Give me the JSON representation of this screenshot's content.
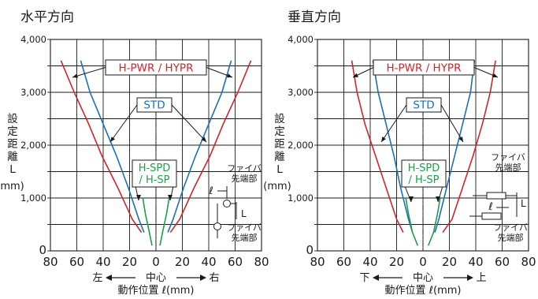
{
  "chart_data": [
    {
      "type": "line",
      "title": "水平方向",
      "ylabel_chars": [
        "設",
        "定",
        "距",
        "離",
        "L"
      ],
      "ylabel_unit": "(mm)",
      "xlabel": "動作位置 ℓ(mm)",
      "direction": {
        "left": "左",
        "center": "中心",
        "right": "右"
      },
      "x_ticks": [
        "80",
        "60",
        "40",
        "20",
        "0",
        "20",
        "40",
        "60",
        "80"
      ],
      "y_ticks": [
        "0",
        "1,000",
        "2,000",
        "3,000",
        "4,000"
      ],
      "xlim": [
        -80,
        80
      ],
      "ylim": [
        0,
        4000
      ],
      "series": [
        {
          "name": "H-PWR / HYPR",
          "color": "#d2232a",
          "label_key": "pwr",
          "left": [
            [
              -72,
              3600
            ],
            [
              -62,
              3000
            ],
            [
              -51,
              2400
            ],
            [
              -41,
              1800
            ],
            [
              -29,
              1200
            ],
            [
              -18,
              600
            ],
            [
              -11,
              350
            ]
          ],
          "right": [
            [
              72,
              3600
            ],
            [
              62,
              3000
            ],
            [
              51,
              2400
            ],
            [
              41,
              1800
            ],
            [
              29,
              1200
            ],
            [
              18,
              600
            ],
            [
              11,
              350
            ]
          ]
        },
        {
          "name": "STD",
          "color": "#1a6fb5",
          "label_key": "std",
          "left": [
            [
              -57,
              3600
            ],
            [
              -50,
              3000
            ],
            [
              -40,
              2400
            ],
            [
              -30,
              1800
            ],
            [
              -21,
              1200
            ],
            [
              -13,
              600
            ],
            [
              -9,
              350
            ]
          ],
          "right": [
            [
              57,
              3600
            ],
            [
              50,
              3000
            ],
            [
              40,
              2400
            ],
            [
              30,
              1800
            ],
            [
              21,
              1200
            ],
            [
              13,
              600
            ],
            [
              9,
              350
            ]
          ]
        },
        {
          "name": "H-SPD / H-SP",
          "color": "#1e9e49",
          "label_key": "spd",
          "left": [
            [
              -10,
              1000
            ],
            [
              -8,
              700
            ],
            [
              -5,
              350
            ],
            [
              -3,
              100
            ]
          ],
          "right": [
            [
              10,
              1000
            ],
            [
              8,
              700
            ],
            [
              5,
              350
            ],
            [
              3,
              100
            ]
          ]
        }
      ],
      "labels": {
        "pwr": "H-PWR / HYPR",
        "std": "STD",
        "spd1": "H-SPD",
        "spd2": "/ H-SP"
      },
      "inset": {
        "fiber_top": "ファイバ",
        "fiber_top2": "先端部",
        "fiber_bot": "ファイバ",
        "fiber_bot2": "先端部",
        "ell": "ℓ",
        "L": "L"
      }
    },
    {
      "type": "line",
      "title": "垂直方向",
      "ylabel_chars": [
        "設",
        "定",
        "距",
        "離",
        "L"
      ],
      "ylabel_unit": "(mm)",
      "xlabel": "動作位置 ℓ(mm)",
      "direction": {
        "left": "下",
        "center": "中心",
        "right": "上"
      },
      "x_ticks": [
        "80",
        "60",
        "40",
        "20",
        "0",
        "20",
        "40",
        "60",
        "80"
      ],
      "y_ticks": [
        "0",
        "1,000",
        "2,000",
        "3,000",
        "4,000"
      ],
      "xlim": [
        -80,
        80
      ],
      "ylim": [
        0,
        4000
      ],
      "series": [
        {
          "name": "H-PWR / HYPR",
          "color": "#d2232a",
          "label_key": "pwr",
          "left": [
            [
              -54,
              3600
            ],
            [
              -50,
              3000
            ],
            [
              -44,
              2400
            ],
            [
              -36,
              1800
            ],
            [
              -28,
              1200
            ],
            [
              -20,
              600
            ],
            [
              -15,
              350
            ]
          ],
          "right": [
            [
              55,
              3600
            ],
            [
              51,
              3000
            ],
            [
              45,
              2400
            ],
            [
              38,
              1800
            ],
            [
              30,
              1200
            ],
            [
              22,
              600
            ],
            [
              15,
              350
            ]
          ]
        },
        {
          "name": "STD",
          "color": "#1a6fb5",
          "label_key": "std",
          "left": [
            [
              -38,
              3600
            ],
            [
              -34,
              3000
            ],
            [
              -28,
              2400
            ],
            [
              -22,
              1800
            ],
            [
              -17,
              1200
            ],
            [
              -11,
              600
            ],
            [
              -8,
              350
            ]
          ],
          "right": [
            [
              39,
              3600
            ],
            [
              36,
              3000
            ],
            [
              30,
              2400
            ],
            [
              24,
              1800
            ],
            [
              18,
              1200
            ],
            [
              12,
              600
            ],
            [
              9,
              350
            ]
          ]
        },
        {
          "name": "H-SPD / H-SP",
          "color": "#1e9e49",
          "label_key": "spd",
          "left": [
            [
              -13,
              1000
            ],
            [
              -11,
              700
            ],
            [
              -8,
              350
            ],
            [
              -4,
              100
            ]
          ],
          "right": [
            [
              13,
              1000
            ],
            [
              11,
              700
            ],
            [
              8,
              350
            ],
            [
              4,
              100
            ]
          ]
        }
      ],
      "labels": {
        "pwr": "H-PWR / HYPR",
        "std": "STD",
        "spd1": "H-SPD",
        "spd2": "/ H-SP"
      },
      "inset": {
        "fiber_top": "ファイバ",
        "fiber_top2": "先端部",
        "fiber_bot": "ファイバ",
        "fiber_bot2": "先端部",
        "ell": "ℓ",
        "L": "L"
      }
    }
  ]
}
